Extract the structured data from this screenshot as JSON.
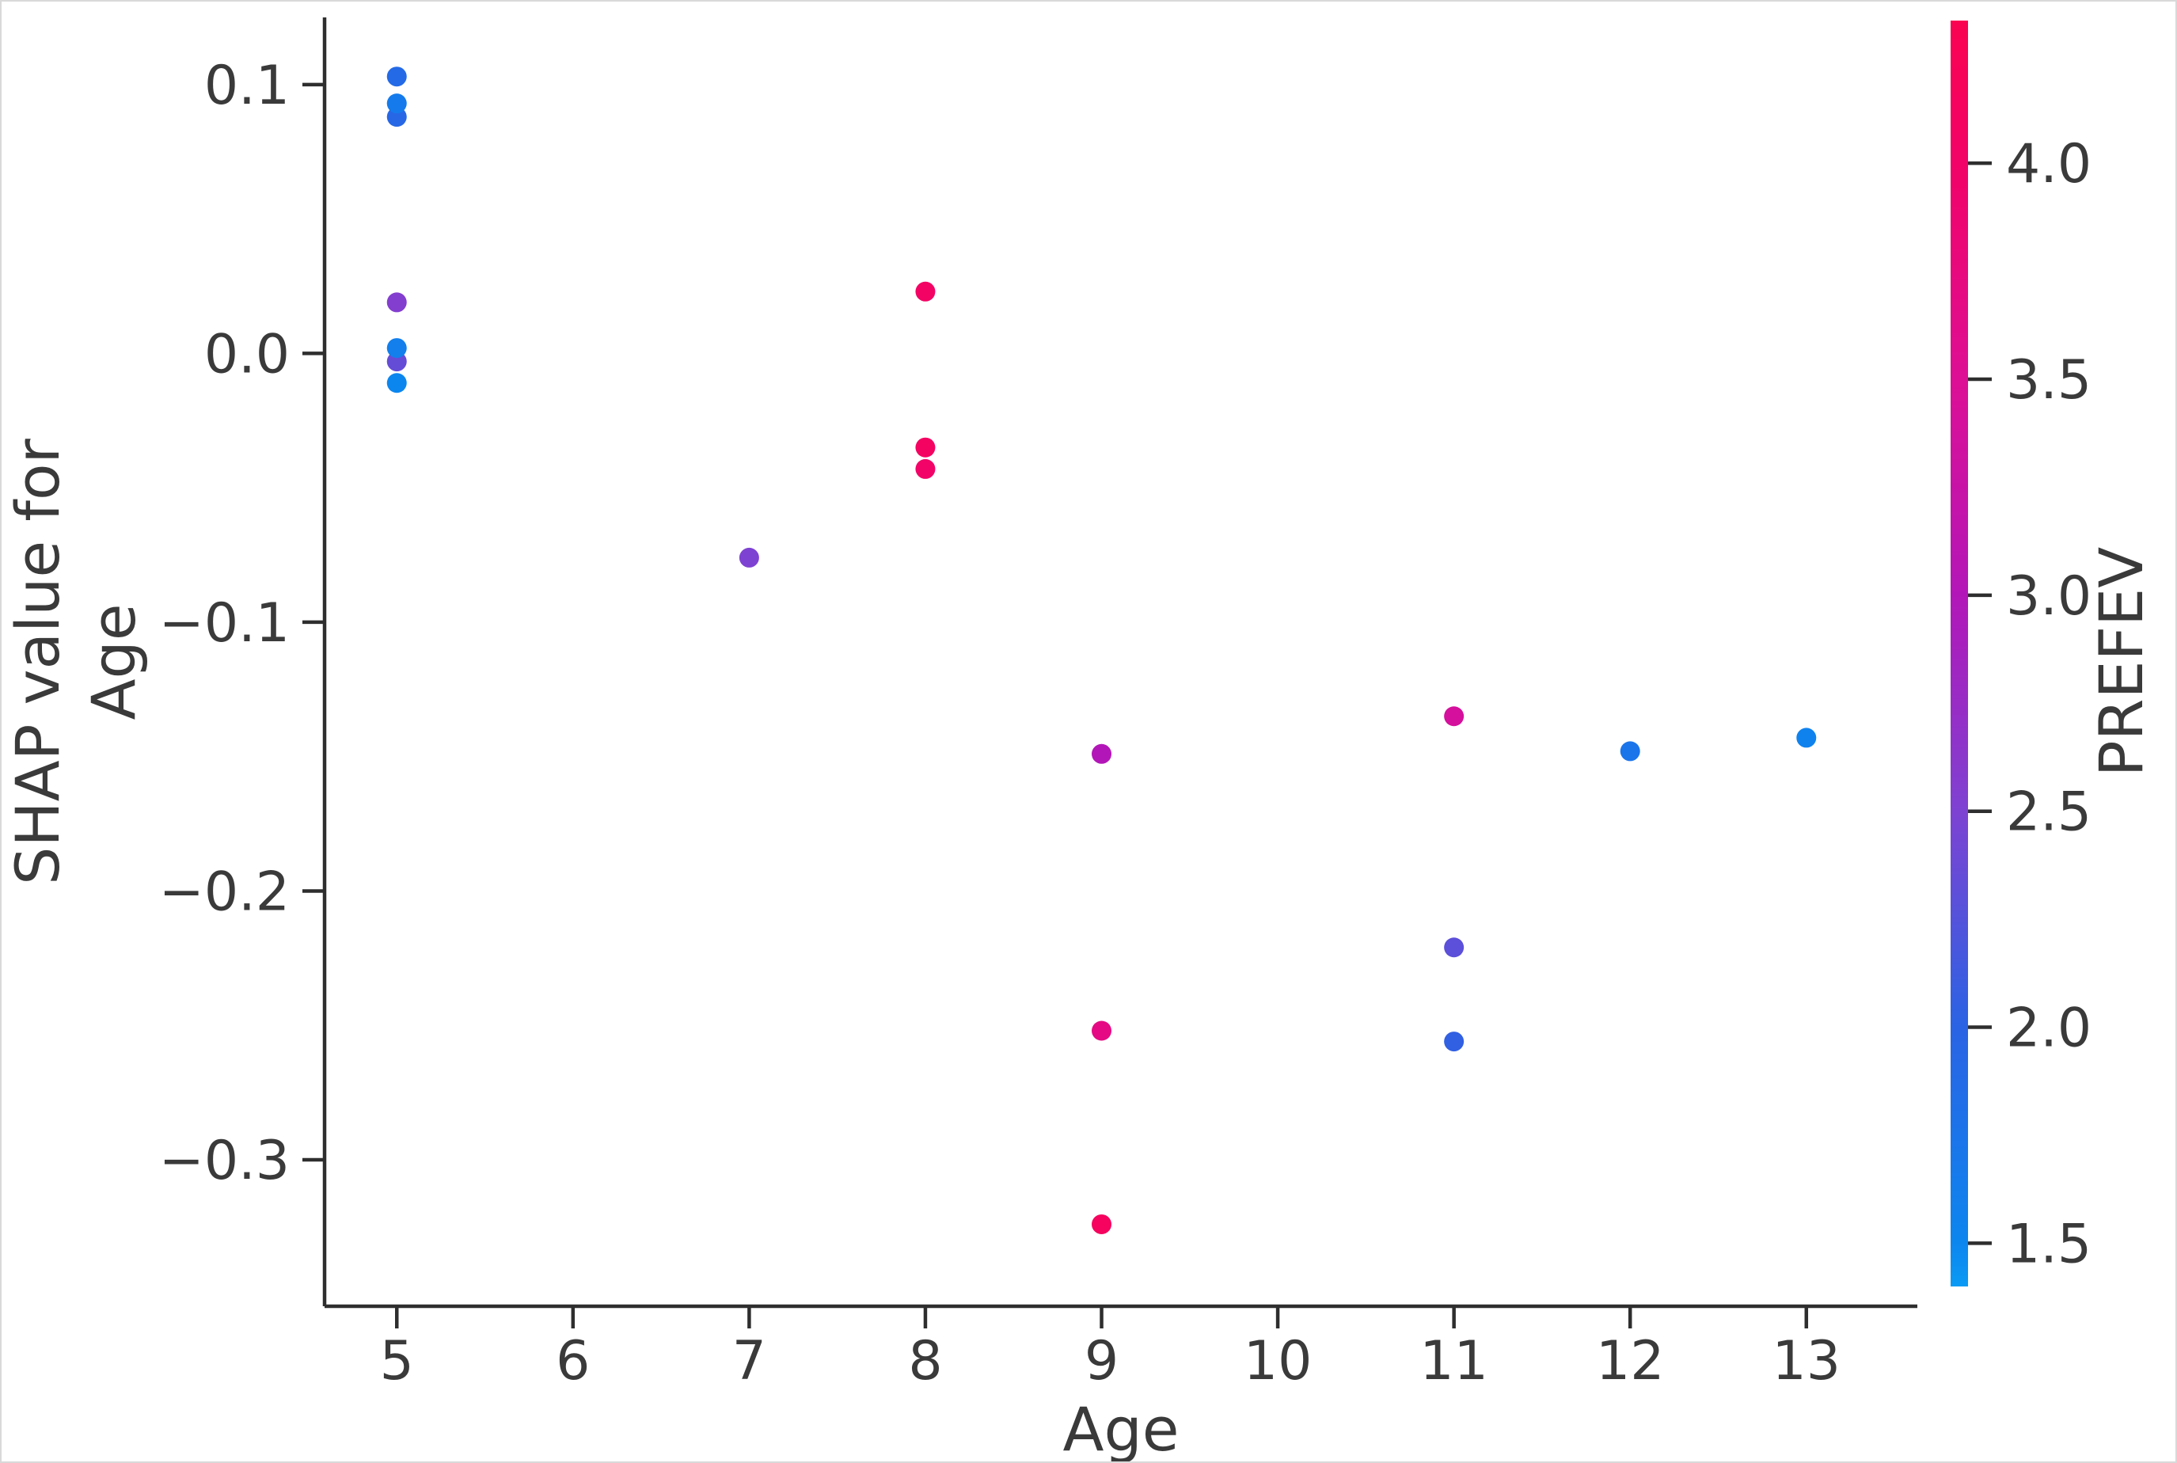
{
  "figure": {
    "background_color": "#ffffff",
    "spine_color": "#2e2e2e",
    "text_color": "#3a3a3a"
  },
  "chart_data": {
    "type": "scatter",
    "title": "",
    "xlabel": "Age",
    "ylabel_lines": [
      "SHAP value for",
      "Age"
    ],
    "legend": "none",
    "grid": false,
    "xlim": [
      4.59,
      13.63
    ],
    "ylim": [
      -0.3545,
      0.125
    ],
    "x_ticks": [
      {
        "label": "5",
        "value": 5
      },
      {
        "label": "6",
        "value": 6
      },
      {
        "label": "7",
        "value": 7
      },
      {
        "label": "8",
        "value": 8
      },
      {
        "label": "9",
        "value": 9
      },
      {
        "label": "10",
        "value": 10
      },
      {
        "label": "11",
        "value": 11
      },
      {
        "label": "12",
        "value": 12
      },
      {
        "label": "13",
        "value": 13
      }
    ],
    "y_ticks": [
      {
        "label": "0.1",
        "value": 0.1
      },
      {
        "label": "0.0",
        "value": 0.0
      },
      {
        "label": "−0.1",
        "value": -0.1
      },
      {
        "label": "−0.2",
        "value": -0.2
      },
      {
        "label": "−0.3",
        "value": -0.3
      }
    ],
    "points": [
      {
        "age": 5,
        "shap": 0.103,
        "prefev": 1.9
      },
      {
        "age": 5,
        "shap": 0.088,
        "prefev": 1.95
      },
      {
        "age": 5,
        "shap": 0.093,
        "prefev": 1.65
      },
      {
        "age": 5,
        "shap": 0.019,
        "prefev": 2.55
      },
      {
        "age": 5,
        "shap": -0.003,
        "prefev": 2.35
      },
      {
        "age": 5,
        "shap": 0.002,
        "prefev": 1.6
      },
      {
        "age": 5,
        "shap": -0.011,
        "prefev": 1.5
      },
      {
        "age": 7,
        "shap": -0.076,
        "prefev": 2.5
      },
      {
        "age": 8,
        "shap": 0.023,
        "prefev": 4.05
      },
      {
        "age": 8,
        "shap": -0.035,
        "prefev": 4.1
      },
      {
        "age": 8,
        "shap": -0.043,
        "prefev": 4.0
      },
      {
        "age": 9,
        "shap": -0.149,
        "prefev": 3.0
      },
      {
        "age": 9,
        "shap": -0.252,
        "prefev": 3.7
      },
      {
        "age": 9,
        "shap": -0.324,
        "prefev": 4.15
      },
      {
        "age": 11,
        "shap": -0.135,
        "prefev": 3.4
      },
      {
        "age": 11,
        "shap": -0.221,
        "prefev": 2.3
      },
      {
        "age": 11,
        "shap": -0.256,
        "prefev": 2.05
      },
      {
        "age": 12,
        "shap": -0.148,
        "prefev": 1.75
      },
      {
        "age": 13,
        "shap": -0.143,
        "prefev": 1.55
      }
    ],
    "colorbar": {
      "label": "PREFEV",
      "vmin": 1.4,
      "vmax": 4.33,
      "ticks": [
        {
          "label": "4.0",
          "value": 4.0
        },
        {
          "label": "3.5",
          "value": 3.5
        },
        {
          "label": "3.0",
          "value": 3.0
        },
        {
          "label": "2.5",
          "value": 2.5
        },
        {
          "label": "2.0",
          "value": 2.0
        },
        {
          "label": "1.5",
          "value": 1.5
        }
      ],
      "colormap_stops": [
        {
          "frac": 0.0,
          "color": "#f90352"
        },
        {
          "frac": 0.112,
          "color": "#f20367"
        },
        {
          "frac": 0.283,
          "color": "#dd0f95"
        },
        {
          "frac": 0.453,
          "color": "#b316b8"
        },
        {
          "frac": 0.624,
          "color": "#7e42d2"
        },
        {
          "frac": 0.795,
          "color": "#2a63e4"
        },
        {
          "frac": 0.966,
          "color": "#0c86ef"
        },
        {
          "frac": 1.0,
          "color": "#0a9af4"
        }
      ]
    }
  }
}
